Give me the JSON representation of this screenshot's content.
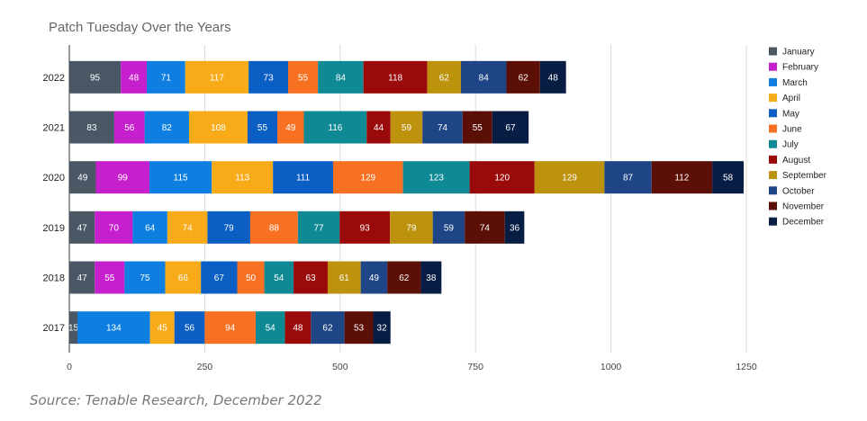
{
  "chart_data": {
    "type": "bar",
    "orientation": "horizontal",
    "stacked": true,
    "title": "Patch Tuesday Over the Years",
    "categories": [
      "2022",
      "2021",
      "2020",
      "2019",
      "2018",
      "2017"
    ],
    "series": [
      {
        "name": "January",
        "color": "#4a5866",
        "values": [
          95,
          83,
          49,
          47,
          47,
          15
        ]
      },
      {
        "name": "February",
        "color": "#c61fcd",
        "values": [
          48,
          56,
          99,
          70,
          55,
          0
        ]
      },
      {
        "name": "March",
        "color": "#0e7fe0",
        "values": [
          71,
          82,
          115,
          64,
          75,
          134
        ]
      },
      {
        "name": "April",
        "color": "#f7ab18",
        "values": [
          117,
          108,
          113,
          74,
          66,
          45
        ]
      },
      {
        "name": "May",
        "color": "#0b5ec4",
        "values": [
          73,
          55,
          111,
          79,
          67,
          56
        ]
      },
      {
        "name": "June",
        "color": "#f87122",
        "values": [
          55,
          49,
          129,
          88,
          50,
          94
        ]
      },
      {
        "name": "July",
        "color": "#0f8a94",
        "values": [
          84,
          116,
          123,
          77,
          54,
          54
        ]
      },
      {
        "name": "August",
        "color": "#9b0a0a",
        "values": [
          118,
          44,
          120,
          93,
          63,
          48
        ]
      },
      {
        "name": "September",
        "color": "#bd920c",
        "values": [
          62,
          59,
          129,
          79,
          61,
          0
        ]
      },
      {
        "name": "October",
        "color": "#1e4585",
        "values": [
          84,
          74,
          87,
          59,
          49,
          62
        ]
      },
      {
        "name": "November",
        "color": "#5b0f06",
        "values": [
          62,
          55,
          112,
          74,
          62,
          53
        ]
      },
      {
        "name": "December",
        "color": "#081d44",
        "values": [
          48,
          67,
          58,
          36,
          38,
          32
        ]
      }
    ],
    "xlim": [
      0,
      1250
    ],
    "xticks": [
      "0",
      "250",
      "500",
      "750",
      "1000",
      "1250"
    ],
    "grid": true,
    "legend_position": "right"
  },
  "source": "Source: Tenable Research, December 2022"
}
